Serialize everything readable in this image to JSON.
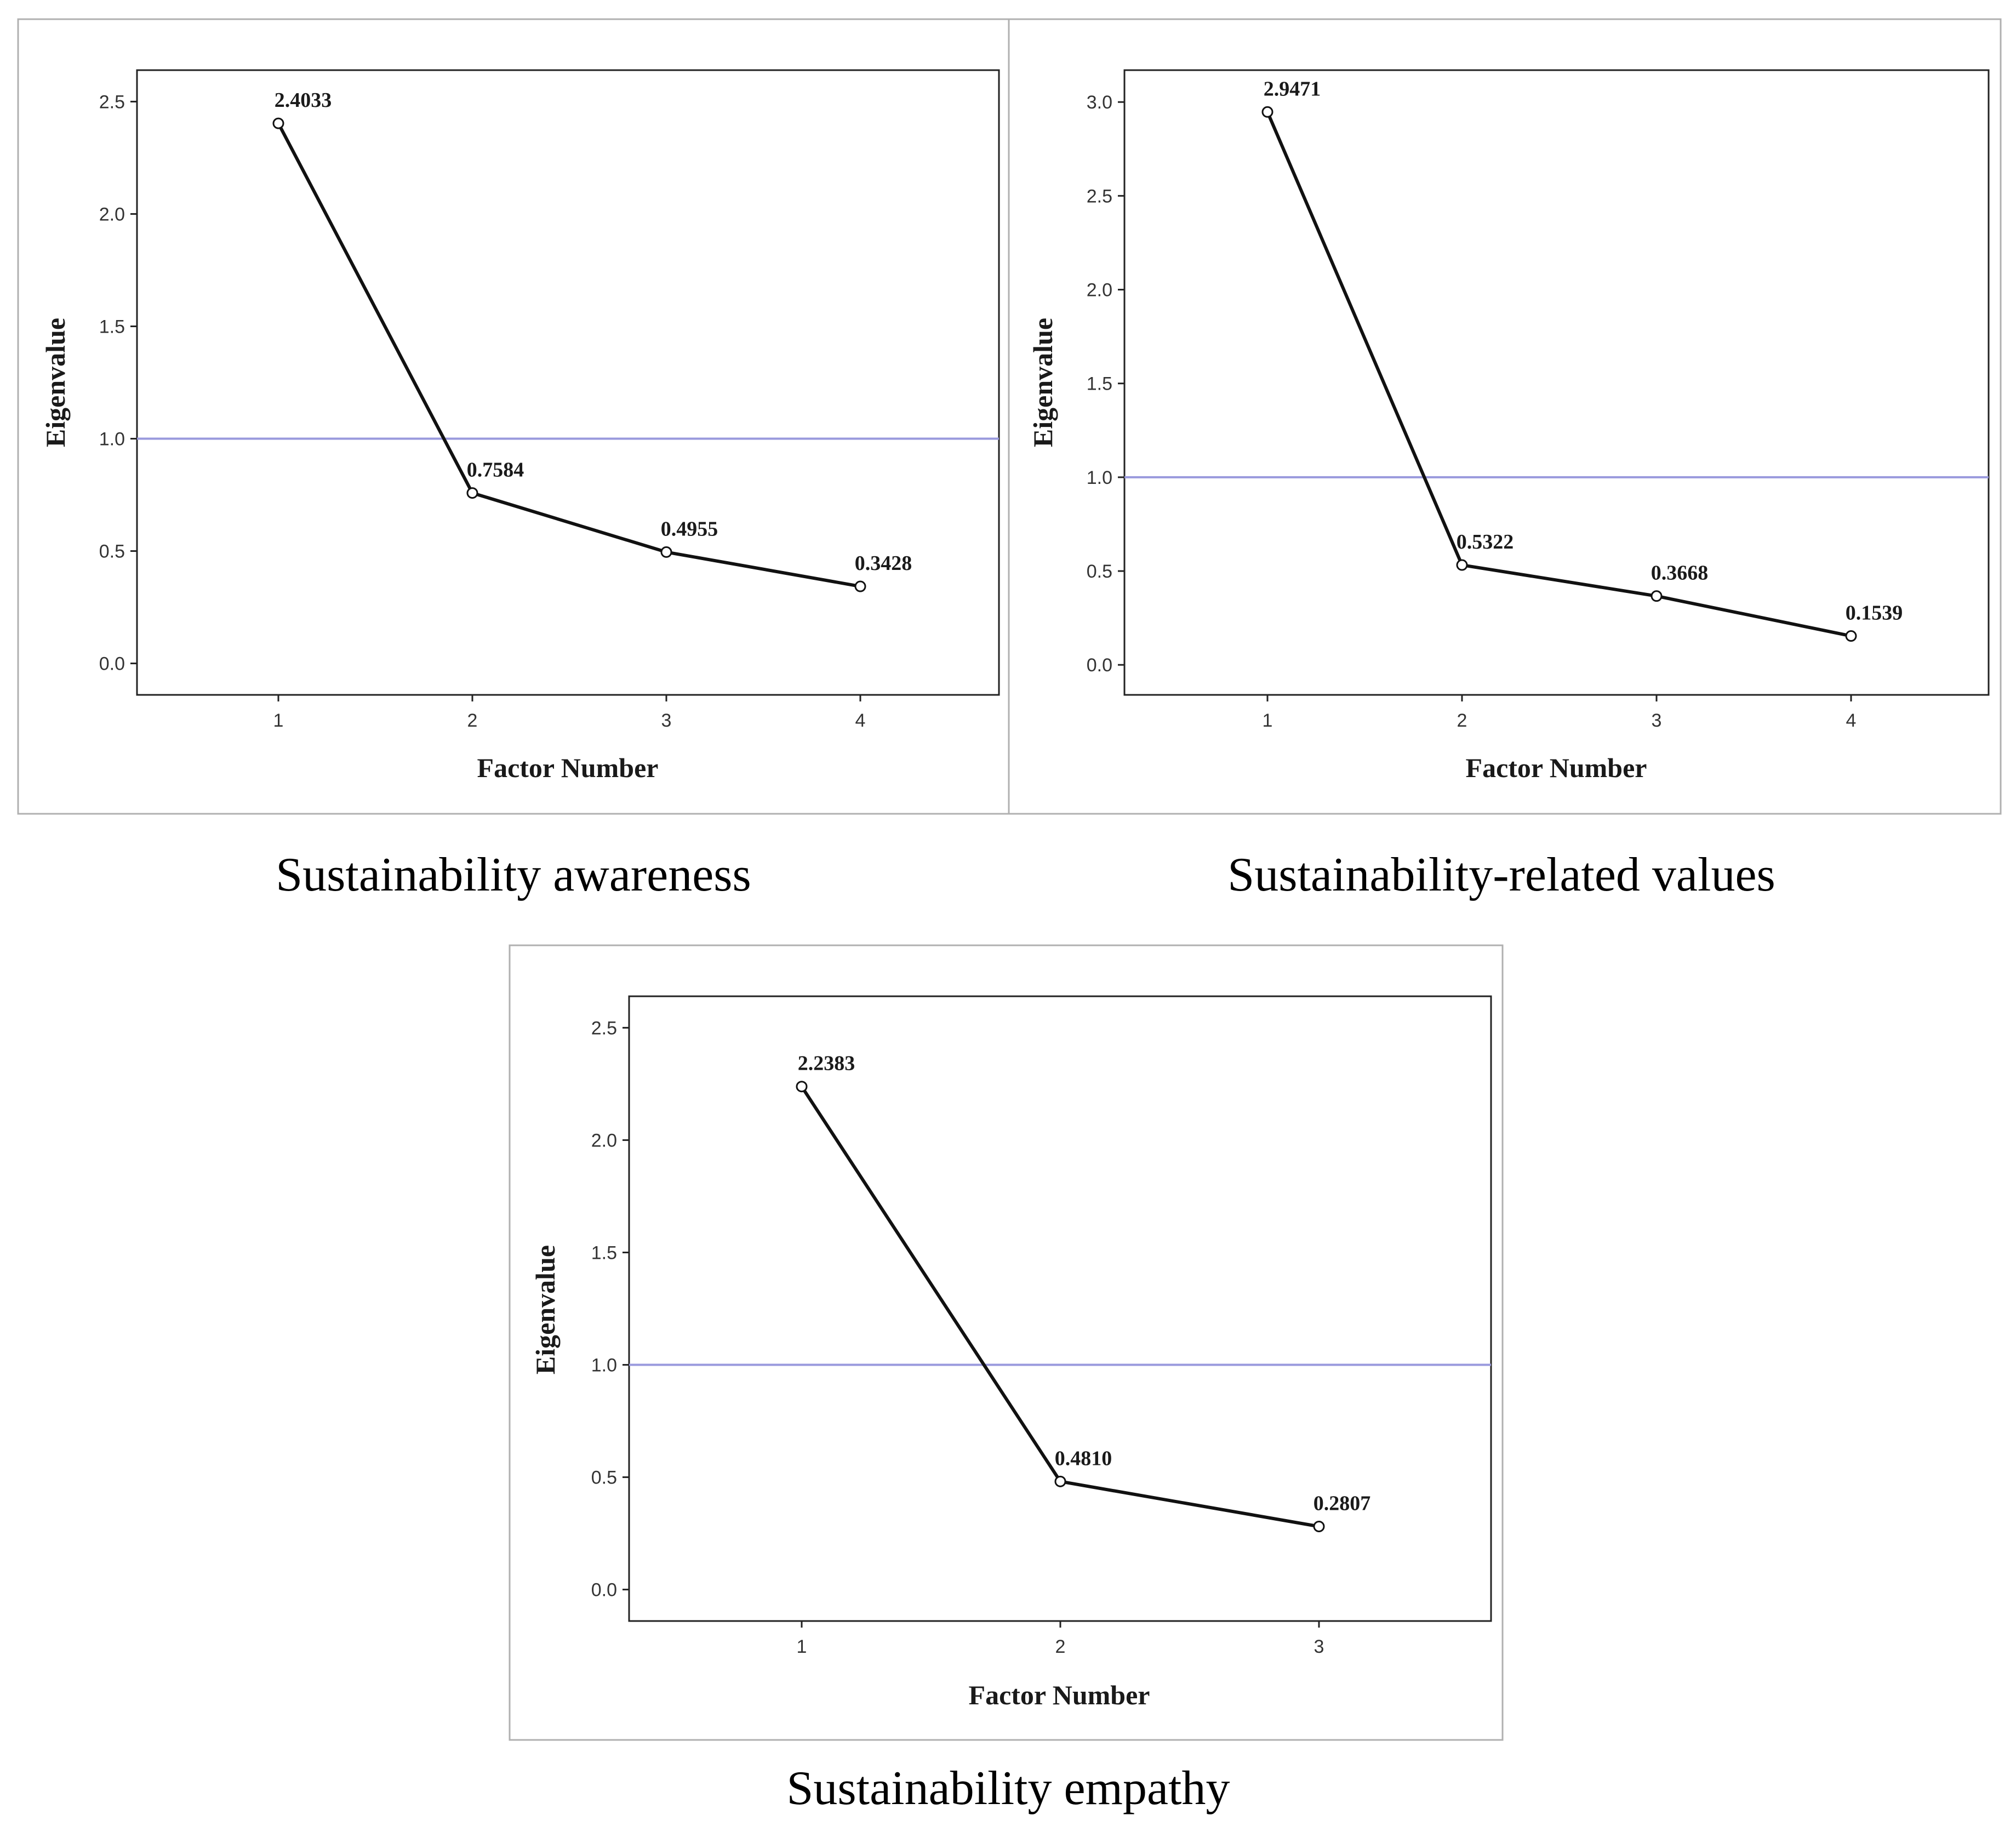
{
  "chart_data": [
    {
      "type": "line",
      "caption": "Sustainability awareness",
      "xlabel": "Factor Number",
      "ylabel": "Eigenvalue",
      "x": [
        "1",
        "2",
        "3",
        "4"
      ],
      "values": [
        2.4033,
        0.7584,
        0.4955,
        0.3428
      ],
      "value_labels": [
        "2.4033",
        "0.7584",
        "0.4955",
        "0.3428"
      ],
      "yticks": [
        "0.0",
        "0.5",
        "1.0",
        "1.5",
        "2.0",
        "2.5"
      ],
      "ylim": [
        -0.14,
        2.64
      ],
      "reference_line": 1.0,
      "grid": false
    },
    {
      "type": "line",
      "caption": "Sustainability-related values",
      "xlabel": "Factor Number",
      "ylabel": "Eigenvalue",
      "x": [
        "1",
        "2",
        "3",
        "4"
      ],
      "values": [
        2.9471,
        0.5322,
        0.3668,
        0.1539
      ],
      "value_labels": [
        "2.9471",
        "0.5322",
        "0.3668",
        "0.1539"
      ],
      "yticks": [
        "0.0",
        "0.5",
        "1.0",
        "1.5",
        "2.0",
        "2.5",
        "3.0"
      ],
      "ylim": [
        -0.16,
        3.17
      ],
      "reference_line": 1.0,
      "grid": false
    },
    {
      "type": "line",
      "caption": "Sustainability empathy",
      "xlabel": "Factor Number",
      "ylabel": "Eigenvalue",
      "x": [
        "1",
        "2",
        "3"
      ],
      "values": [
        2.2383,
        0.481,
        0.2807
      ],
      "value_labels": [
        "2.2383",
        "0.4810",
        "0.2807"
      ],
      "yticks": [
        "0.0",
        "0.5",
        "1.0",
        "1.5",
        "2.0",
        "2.5"
      ],
      "ylim": [
        -0.14,
        2.64
      ],
      "reference_line": 1.0,
      "grid": false
    }
  ],
  "colors": {
    "line": "#111111",
    "reference": "#9999dd",
    "frame": "#222222",
    "panel_border": "#b0b0b0"
  }
}
